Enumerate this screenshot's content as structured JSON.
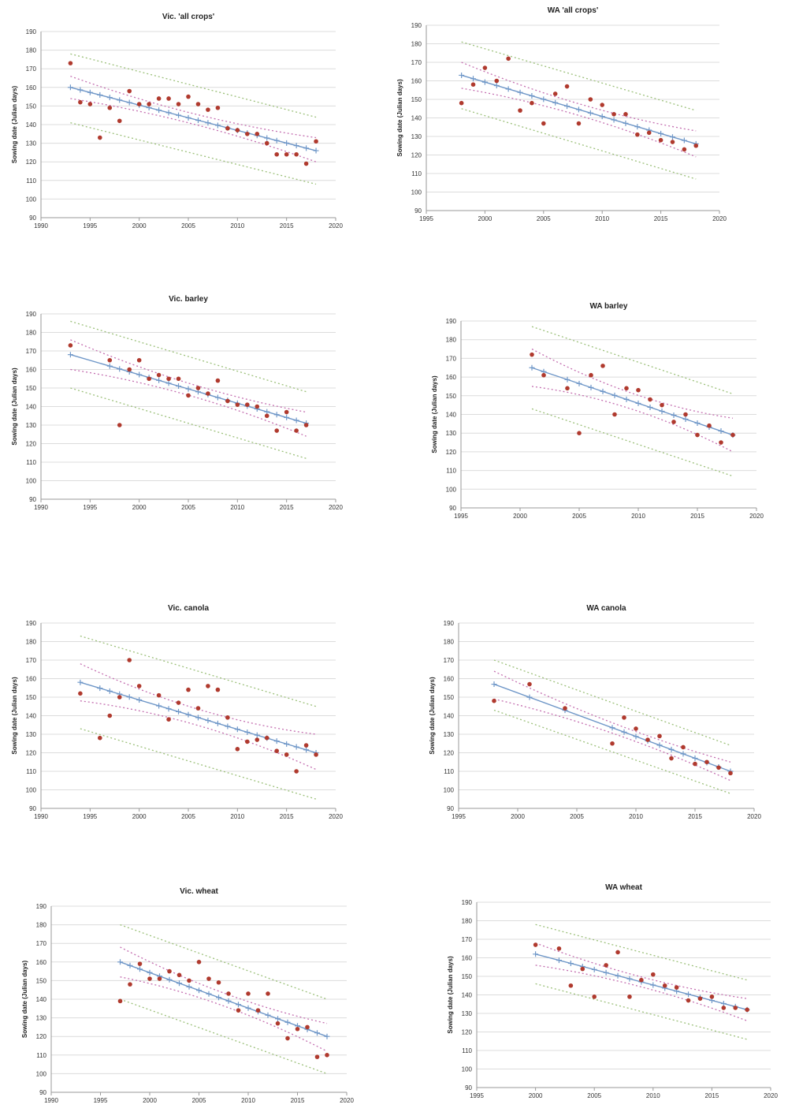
{
  "chart_data": [
    {
      "type": "scatter",
      "title": "Vic. 'all crops'",
      "ylabel": "Sowing date (Julian days)",
      "xlim": [
        1990,
        2020
      ],
      "ylim": [
        90,
        190
      ],
      "xticks": [
        "1990",
        "1995",
        "2000",
        "2005",
        "2010",
        "2015",
        "2020"
      ],
      "yticks": [
        "90",
        "100",
        "110",
        "120",
        "130",
        "140",
        "150",
        "160",
        "170",
        "180",
        "190"
      ],
      "grid": "horizontal",
      "colors": {
        "points": "#b03a2e",
        "fit": "#6f97c8",
        "confidence": "#c46fb0",
        "prediction": "#9cc07a"
      },
      "points": [
        [
          1993,
          173
        ],
        [
          1994,
          152
        ],
        [
          1995,
          151
        ],
        [
          1996,
          133
        ],
        [
          1997,
          149
        ],
        [
          1998,
          142
        ],
        [
          1999,
          158
        ],
        [
          2000,
          151
        ],
        [
          2001,
          151
        ],
        [
          2002,
          154
        ],
        [
          2003,
          154
        ],
        [
          2004,
          151
        ],
        [
          2005,
          155
        ],
        [
          2006,
          151
        ],
        [
          2007,
          148
        ],
        [
          2008,
          149
        ],
        [
          2009,
          138
        ],
        [
          2010,
          137
        ],
        [
          2011,
          135
        ],
        [
          2012,
          135
        ],
        [
          2013,
          130
        ],
        [
          2014,
          124
        ],
        [
          2015,
          124
        ],
        [
          2016,
          124
        ],
        [
          2017,
          119
        ],
        [
          2018,
          131
        ]
      ],
      "fit": {
        "x": [
          1993,
          2018
        ],
        "y": [
          160,
          126
        ]
      },
      "confidence": {
        "x": [
          1993,
          2018
        ],
        "upper": [
          166,
          133
        ],
        "lower": [
          154,
          120
        ]
      },
      "prediction": {
        "x": [
          1993,
          2018
        ],
        "upper": [
          178,
          144
        ],
        "lower": [
          141,
          108
        ]
      }
    },
    {
      "type": "scatter",
      "title": "WA 'all crops'",
      "ylabel": "Sowing date (Julian days)",
      "xlim": [
        1995,
        2020
      ],
      "ylim": [
        90,
        190
      ],
      "xticks": [
        "1995",
        "2000",
        "2005",
        "2010",
        "2015",
        "2020"
      ],
      "yticks": [
        "90",
        "100",
        "110",
        "120",
        "130",
        "140",
        "150",
        "160",
        "170",
        "180",
        "190"
      ],
      "grid": "horizontal",
      "colors": {
        "points": "#b03a2e",
        "fit": "#6f97c8",
        "confidence": "#c46fb0",
        "prediction": "#9cc07a"
      },
      "points": [
        [
          1998,
          148
        ],
        [
          1999,
          158
        ],
        [
          2000,
          167
        ],
        [
          2001,
          160
        ],
        [
          2002,
          172
        ],
        [
          2003,
          144
        ],
        [
          2004,
          148
        ],
        [
          2005,
          137
        ],
        [
          2006,
          153
        ],
        [
          2007,
          157
        ],
        [
          2008,
          137
        ],
        [
          2009,
          150
        ],
        [
          2010,
          147
        ],
        [
          2011,
          142
        ],
        [
          2012,
          142
        ],
        [
          2013,
          131
        ],
        [
          2014,
          132
        ],
        [
          2015,
          128
        ],
        [
          2016,
          127
        ],
        [
          2017,
          123
        ],
        [
          2018,
          125
        ]
      ],
      "fit": {
        "x": [
          1998,
          2018
        ],
        "y": [
          163,
          126
        ]
      },
      "confidence": {
        "x": [
          1998,
          2018
        ],
        "upper": [
          170,
          133
        ],
        "lower": [
          156,
          119
        ]
      },
      "prediction": {
        "x": [
          1998,
          2018
        ],
        "upper": [
          181,
          144
        ],
        "lower": [
          145,
          107
        ]
      }
    },
    {
      "type": "scatter",
      "title": "Vic. barley",
      "ylabel": "Sowing date (Julian days)",
      "xlim": [
        1990,
        2020
      ],
      "ylim": [
        90,
        190
      ],
      "xticks": [
        "1990",
        "1995",
        "2000",
        "2005",
        "2010",
        "2015",
        "2020"
      ],
      "yticks": [
        "90",
        "100",
        "110",
        "120",
        "130",
        "140",
        "150",
        "160",
        "170",
        "180",
        "190"
      ],
      "grid": "horizontal",
      "colors": {
        "points": "#b03a2e",
        "fit": "#6f97c8",
        "confidence": "#c46fb0",
        "prediction": "#9cc07a"
      },
      "points": [
        [
          1993,
          173
        ],
        [
          1997,
          165
        ],
        [
          1998,
          130
        ],
        [
          1999,
          160
        ],
        [
          2000,
          165
        ],
        [
          2001,
          155
        ],
        [
          2002,
          157
        ],
        [
          2003,
          155
        ],
        [
          2004,
          155
        ],
        [
          2005,
          146
        ],
        [
          2006,
          150
        ],
        [
          2007,
          147
        ],
        [
          2008,
          154
        ],
        [
          2009,
          143
        ],
        [
          2010,
          141
        ],
        [
          2011,
          141
        ],
        [
          2012,
          140
        ],
        [
          2013,
          135
        ],
        [
          2014,
          127
        ],
        [
          2015,
          137
        ],
        [
          2016,
          127
        ],
        [
          2017,
          130
        ]
      ],
      "fit": {
        "x": [
          1993,
          2017
        ],
        "y": [
          168,
          131
        ]
      },
      "confidence": {
        "x": [
          1993,
          2017
        ],
        "upper": [
          176,
          137
        ],
        "lower": [
          160,
          124
        ]
      },
      "prediction": {
        "x": [
          1993,
          2017
        ],
        "upper": [
          186,
          148
        ],
        "lower": [
          150,
          112
        ]
      }
    },
    {
      "type": "scatter",
      "title": "WA barley",
      "ylabel": "Sowing date (Julian days)",
      "xlim": [
        1995,
        2020
      ],
      "ylim": [
        90,
        190
      ],
      "xticks": [
        "1995",
        "2000",
        "2005",
        "2010",
        "2015",
        "2020"
      ],
      "yticks": [
        "90",
        "100",
        "110",
        "120",
        "130",
        "140",
        "150",
        "160",
        "170",
        "180",
        "190"
      ],
      "grid": "horizontal",
      "colors": {
        "points": "#b03a2e",
        "fit": "#6f97c8",
        "confidence": "#c46fb0",
        "prediction": "#9cc07a"
      },
      "points": [
        [
          2001,
          172
        ],
        [
          2002,
          161
        ],
        [
          2004,
          154
        ],
        [
          2005,
          130
        ],
        [
          2006,
          161
        ],
        [
          2007,
          166
        ],
        [
          2008,
          140
        ],
        [
          2009,
          154
        ],
        [
          2010,
          153
        ],
        [
          2011,
          148
        ],
        [
          2012,
          145
        ],
        [
          2013,
          136
        ],
        [
          2014,
          140
        ],
        [
          2015,
          129
        ],
        [
          2016,
          134
        ],
        [
          2017,
          125
        ],
        [
          2018,
          129
        ]
      ],
      "fit": {
        "x": [
          2001,
          2018
        ],
        "y": [
          165,
          129
        ]
      },
      "confidence": {
        "x": [
          2001,
          2018
        ],
        "upper": [
          175,
          138
        ],
        "lower": [
          155,
          120
        ]
      },
      "prediction": {
        "x": [
          2001,
          2018
        ],
        "upper": [
          187,
          151
        ],
        "lower": [
          143,
          107
        ]
      }
    },
    {
      "type": "scatter",
      "title": "Vic. canola",
      "ylabel": "Sowing date (Julian days)",
      "xlim": [
        1990,
        2020
      ],
      "ylim": [
        90,
        190
      ],
      "xticks": [
        "1990",
        "1995",
        "2000",
        "2005",
        "2010",
        "2015",
        "2020"
      ],
      "yticks": [
        "90",
        "100",
        "110",
        "120",
        "130",
        "140",
        "150",
        "160",
        "170",
        "180",
        "190"
      ],
      "grid": "horizontal",
      "colors": {
        "points": "#b03a2e",
        "fit": "#6f97c8",
        "confidence": "#c46fb0",
        "prediction": "#9cc07a"
      },
      "points": [
        [
          1994,
          152
        ],
        [
          1996,
          128
        ],
        [
          1997,
          140
        ],
        [
          1998,
          150
        ],
        [
          1999,
          170
        ],
        [
          2000,
          156
        ],
        [
          2002,
          151
        ],
        [
          2003,
          138
        ],
        [
          2004,
          147
        ],
        [
          2005,
          154
        ],
        [
          2006,
          144
        ],
        [
          2007,
          156
        ],
        [
          2008,
          154
        ],
        [
          2009,
          139
        ],
        [
          2010,
          122
        ],
        [
          2011,
          126
        ],
        [
          2012,
          127
        ],
        [
          2013,
          128
        ],
        [
          2014,
          121
        ],
        [
          2015,
          119
        ],
        [
          2016,
          110
        ],
        [
          2017,
          124
        ],
        [
          2018,
          119
        ]
      ],
      "fit": {
        "x": [
          1994,
          2018
        ],
        "y": [
          158,
          120
        ]
      },
      "confidence": {
        "x": [
          1994,
          2018
        ],
        "upper": [
          168,
          130
        ],
        "lower": [
          148,
          111
        ]
      },
      "prediction": {
        "x": [
          1994,
          2018
        ],
        "upper": [
          183,
          145
        ],
        "lower": [
          133,
          95
        ]
      }
    },
    {
      "type": "scatter",
      "title": "WA canola",
      "ylabel": "Sowing date (Julian days)",
      "xlim": [
        1995,
        2020
      ],
      "ylim": [
        90,
        190
      ],
      "xticks": [
        "1995",
        "2000",
        "2005",
        "2010",
        "2015",
        "2020"
      ],
      "yticks": [
        "90",
        "100",
        "110",
        "120",
        "130",
        "140",
        "150",
        "160",
        "170",
        "180",
        "190"
      ],
      "grid": "horizontal",
      "colors": {
        "points": "#b03a2e",
        "fit": "#6f97c8",
        "confidence": "#c46fb0",
        "prediction": "#9cc07a"
      },
      "points": [
        [
          1998,
          148
        ],
        [
          2001,
          157
        ],
        [
          2004,
          144
        ],
        [
          2008,
          125
        ],
        [
          2009,
          139
        ],
        [
          2010,
          133
        ],
        [
          2011,
          127
        ],
        [
          2012,
          129
        ],
        [
          2013,
          117
        ],
        [
          2014,
          123
        ],
        [
          2015,
          114
        ],
        [
          2016,
          115
        ],
        [
          2017,
          112
        ],
        [
          2018,
          109
        ]
      ],
      "fit": {
        "x": [
          1998,
          2018
        ],
        "y": [
          157,
          110
        ]
      },
      "confidence": {
        "x": [
          1998,
          2018
        ],
        "upper": [
          164,
          115
        ],
        "lower": [
          149,
          105
        ]
      },
      "prediction": {
        "x": [
          1998,
          2018
        ],
        "upper": [
          170,
          124
        ],
        "lower": [
          143,
          98
        ]
      }
    },
    {
      "type": "scatter",
      "title": "Vic. wheat",
      "ylabel": "Sowing date (Julian days)",
      "xlim": [
        1990,
        2020
      ],
      "ylim": [
        90,
        190
      ],
      "xticks": [
        "1990",
        "1995",
        "2000",
        "2005",
        "2010",
        "2015",
        "2020"
      ],
      "yticks": [
        "90",
        "100",
        "110",
        "120",
        "130",
        "140",
        "150",
        "160",
        "170",
        "180",
        "190"
      ],
      "grid": "horizontal",
      "colors": {
        "points": "#b03a2e",
        "fit": "#6f97c8",
        "confidence": "#c46fb0",
        "prediction": "#9cc07a"
      },
      "points": [
        [
          1997,
          139
        ],
        [
          1998,
          148
        ],
        [
          1999,
          159
        ],
        [
          2000,
          151
        ],
        [
          2001,
          151
        ],
        [
          2002,
          155
        ],
        [
          2003,
          153
        ],
        [
          2004,
          150
        ],
        [
          2005,
          160
        ],
        [
          2006,
          151
        ],
        [
          2007,
          149
        ],
        [
          2008,
          143
        ],
        [
          2009,
          134
        ],
        [
          2010,
          143
        ],
        [
          2011,
          134
        ],
        [
          2012,
          143
        ],
        [
          2013,
          127
        ],
        [
          2014,
          119
        ],
        [
          2015,
          124
        ],
        [
          2016,
          125
        ],
        [
          2017,
          109
        ],
        [
          2018,
          110
        ]
      ],
      "fit": {
        "x": [
          1997,
          2018
        ],
        "y": [
          160,
          120
        ]
      },
      "confidence": {
        "x": [
          1997,
          2018
        ],
        "upper": [
          168,
          127
        ],
        "lower": [
          152,
          112
        ]
      },
      "prediction": {
        "x": [
          1997,
          2018
        ],
        "upper": [
          180,
          140
        ],
        "lower": [
          140,
          100
        ]
      }
    },
    {
      "type": "scatter",
      "title": "WA wheat",
      "ylabel": "Sowing date (Julian days)",
      "xlim": [
        1995,
        2020
      ],
      "ylim": [
        90,
        190
      ],
      "xticks": [
        "1995",
        "2000",
        "2005",
        "2010",
        "2015",
        "2020"
      ],
      "yticks": [
        "90",
        "100",
        "110",
        "120",
        "130",
        "140",
        "150",
        "160",
        "170",
        "180",
        "190"
      ],
      "grid": "horizontal",
      "colors": {
        "points": "#b03a2e",
        "fit": "#6f97c8",
        "confidence": "#c46fb0",
        "prediction": "#9cc07a"
      },
      "points": [
        [
          2000,
          167
        ],
        [
          2002,
          165
        ],
        [
          2003,
          145
        ],
        [
          2004,
          154
        ],
        [
          2005,
          139
        ],
        [
          2006,
          156
        ],
        [
          2007,
          163
        ],
        [
          2008,
          139
        ],
        [
          2009,
          148
        ],
        [
          2010,
          151
        ],
        [
          2011,
          145
        ],
        [
          2012,
          144
        ],
        [
          2013,
          137
        ],
        [
          2014,
          138
        ],
        [
          2015,
          139
        ],
        [
          2016,
          133
        ],
        [
          2017,
          133
        ],
        [
          2018,
          132
        ]
      ],
      "fit": {
        "x": [
          2000,
          2018
        ],
        "y": [
          162,
          132
        ]
      },
      "confidence": {
        "x": [
          2000,
          2018
        ],
        "upper": [
          168,
          138
        ],
        "lower": [
          156,
          126
        ]
      },
      "prediction": {
        "x": [
          2000,
          2018
        ],
        "upper": [
          178,
          148
        ],
        "lower": [
          146,
          116
        ]
      }
    }
  ]
}
